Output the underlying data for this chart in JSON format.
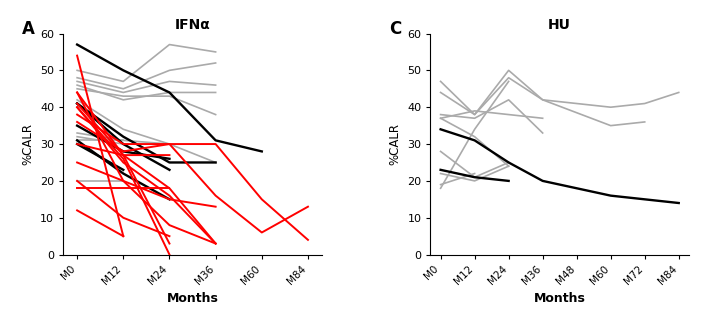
{
  "panel_A": {
    "title": "IFNα",
    "label": "A",
    "xticklabels": [
      "M0",
      "M12",
      "M24",
      "M36",
      "M60",
      "M84"
    ],
    "xlim": [
      -0.3,
      5.3
    ],
    "ylim": [
      0,
      60
    ],
    "yticks": [
      0,
      10,
      20,
      30,
      40,
      50,
      60
    ],
    "red_lines": [
      [
        0,
        54,
        1,
        5
      ],
      [
        0,
        50,
        1,
        null
      ],
      [
        0,
        44,
        1,
        20,
        2,
        8,
        3,
        3
      ],
      [
        0,
        44,
        1,
        27,
        2,
        3
      ],
      [
        0,
        41,
        1,
        27,
        2,
        18,
        3,
        3
      ],
      [
        0,
        40,
        1,
        26,
        2,
        0
      ],
      [
        0,
        40,
        1,
        25,
        2,
        16,
        3,
        3
      ],
      [
        0,
        38,
        1,
        30,
        2,
        30,
        3,
        16,
        4,
        6,
        5,
        13
      ],
      [
        0,
        36,
        1,
        28,
        2,
        30,
        3,
        30,
        4,
        15,
        5,
        4
      ],
      [
        0,
        30,
        1,
        27,
        2,
        27
      ],
      [
        0,
        25,
        1,
        20,
        2,
        15,
        3,
        13
      ],
      [
        0,
        20,
        1,
        10,
        2,
        5
      ],
      [
        0,
        18,
        1,
        18,
        2,
        18
      ],
      [
        0,
        12,
        1,
        5
      ]
    ],
    "black_lines": [
      [
        0,
        57,
        1,
        50,
        2,
        44,
        3,
        31,
        4,
        28
      ],
      [
        0,
        41,
        1,
        32,
        2,
        25,
        3,
        25
      ],
      [
        0,
        41,
        1,
        30,
        2,
        23
      ],
      [
        0,
        35,
        1,
        28,
        2,
        26
      ],
      [
        0,
        31,
        1,
        22,
        2,
        15
      ],
      [
        0,
        30,
        1,
        23
      ]
    ],
    "gray_lines": [
      [
        0,
        50,
        1,
        47,
        2,
        57,
        3,
        55
      ],
      [
        0,
        48,
        1,
        45,
        2,
        50,
        3,
        52
      ],
      [
        0,
        47,
        1,
        44,
        2,
        47,
        3,
        46
      ],
      [
        0,
        46,
        1,
        42,
        2,
        44,
        3,
        44
      ],
      [
        0,
        45,
        1,
        43,
        2,
        43,
        3,
        38
      ],
      [
        0,
        42,
        1,
        34,
        2,
        30,
        3,
        25
      ],
      [
        0,
        33,
        1,
        31,
        2,
        30
      ],
      [
        0,
        32,
        1,
        30
      ],
      [
        0,
        31,
        1,
        31
      ],
      [
        0,
        20,
        1,
        20
      ]
    ]
  },
  "panel_C": {
    "title": "HU",
    "label": "C",
    "xticklabels": [
      "M0",
      "M12",
      "M24",
      "M36",
      "M48",
      "M60",
      "M72",
      "M84"
    ],
    "xlim": [
      -0.3,
      7.3
    ],
    "ylim": [
      0,
      60
    ],
    "yticks": [
      0,
      10,
      20,
      30,
      40,
      50,
      60
    ],
    "black_lines": [
      [
        0,
        34,
        1,
        31,
        2,
        25,
        3,
        20,
        4,
        18,
        5,
        16,
        6,
        15,
        7,
        14
      ],
      [
        0,
        23,
        1,
        21,
        2,
        20
      ]
    ],
    "gray_lines": [
      [
        0,
        47,
        1,
        38,
        2,
        48,
        3,
        42,
        5,
        40,
        6,
        41,
        7,
        44
      ],
      [
        0,
        44,
        1,
        38,
        2,
        50,
        3,
        42,
        5,
        35,
        6,
        36
      ],
      [
        0,
        38,
        1,
        37,
        2,
        42,
        3,
        33
      ],
      [
        0,
        37,
        1,
        39,
        2,
        38,
        3,
        37
      ],
      [
        0,
        37,
        1,
        32,
        2,
        24
      ],
      [
        0,
        28,
        1,
        21,
        2,
        25
      ],
      [
        0,
        22,
        1,
        20,
        2,
        24
      ],
      [
        0,
        19,
        1,
        22
      ],
      [
        0,
        18,
        1,
        34,
        2,
        47
      ]
    ]
  },
  "colors": {
    "red": "#ff0000",
    "black": "#000000",
    "gray": "#aaaaaa"
  },
  "figsize": [
    7.03,
    3.35
  ],
  "dpi": 100
}
